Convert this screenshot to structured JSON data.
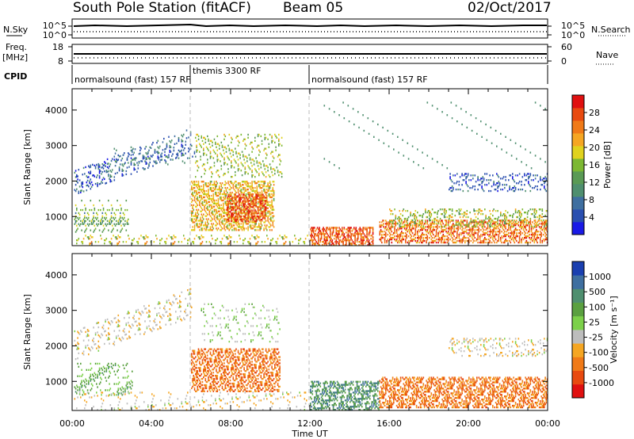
{
  "header": {
    "title": "South Pole Station (fitACF)",
    "beam": "Beam 05",
    "date": "02/Oct/2017"
  },
  "noise": {
    "left_label": "N.Sky",
    "right_label": "N.Search",
    "tick_high": "10^5",
    "tick_low": "10^0"
  },
  "freq": {
    "left_label": "Freq.",
    "left_unit": "[MHz]",
    "right_label": "Nave",
    "tick_high": "18",
    "tick_low": "8",
    "nave_high": "60",
    "nave_low": "0"
  },
  "cpid": {
    "label": "CPID",
    "segments": [
      "normalsound (fast) 157 RF",
      "themis 3300 RF",
      "normalsound (fast) 157 RF"
    ]
  },
  "xaxis": {
    "label": "Time UT",
    "range_hours": [
      0,
      24
    ],
    "tick_hours": [
      0,
      4,
      8,
      12,
      16,
      20,
      24
    ],
    "tick_labels": [
      "00:00",
      "04:00",
      "08:00",
      "12:00",
      "16:00",
      "20:00",
      "00:00"
    ]
  },
  "panels": {
    "power": {
      "ylabel": "Slant Range [km]",
      "colorbar_title": "Power [dB]",
      "yrange_km": [
        180,
        4600
      ],
      "yticks": [
        1000,
        2000,
        3000,
        4000
      ],
      "colorbar_ticks": [
        "4",
        "8",
        "12",
        "16",
        "20",
        "24",
        "28"
      ],
      "colorbar_range": [
        0,
        32
      ]
    },
    "velocity": {
      "ylabel": "Slant Range [km]",
      "colorbar_title": "Velocity [m s⁻¹]",
      "yrange_km": [
        180,
        4600
      ],
      "yticks": [
        1000,
        2000,
        3000,
        4000
      ],
      "colorbar_ticks": [
        "1000",
        "500",
        "100",
        "25",
        "-25",
        "-100",
        "-500",
        "-1000"
      ]
    }
  },
  "colors": {
    "power_scale": [
      "#1a1ae6",
      "#2a4fb0",
      "#3f6fa0",
      "#4f8f6f",
      "#5a9a55",
      "#7cb832",
      "#e0d21e",
      "#f5a623",
      "#f07a18",
      "#e84a10",
      "#e01010"
    ],
    "velocity_scale": [
      "#1a3fb0",
      "#3f6fa0",
      "#4f8f6f",
      "#5aa040",
      "#7cd04a",
      "#bdbdbd",
      "#f5a623",
      "#f07a18",
      "#e84a10",
      "#e01010"
    ]
  },
  "chart_data": {
    "type": "heatmap",
    "title": "South Pole Station (fitACF)",
    "xlabel": "Time UT",
    "ylabel": "Slant Range [km]",
    "x_range_hours": [
      0,
      24
    ],
    "y_range_km": [
      180,
      4600
    ],
    "vertical_markers_hours": [
      6,
      12
    ],
    "power_regions": [
      {
        "t0": 0.1,
        "t1": 6.0,
        "r0": 1600,
        "r1": 2300,
        "level": 6,
        "density": 0.22,
        "tilt": 1200
      },
      {
        "t0": 2.0,
        "t1": 6.2,
        "r0": 2450,
        "r1": 2950,
        "level": 7,
        "density": 0.15,
        "tilt": 0
      },
      {
        "t0": 0.1,
        "t1": 2.8,
        "r0": 550,
        "r1": 1450,
        "level": 14,
        "density": 0.25,
        "tilt": 0
      },
      {
        "t0": 6.0,
        "t1": 10.2,
        "r0": 600,
        "r1": 2000,
        "level": 20,
        "density": 0.45,
        "tilt": 0
      },
      {
        "t0": 7.8,
        "t1": 9.8,
        "r0": 850,
        "r1": 1600,
        "level": 27,
        "density": 0.5,
        "tilt": 0
      },
      {
        "t0": 6.2,
        "t1": 10.6,
        "r0": 2100,
        "r1": 3300,
        "level": 16,
        "density": 0.2,
        "tilt": 0
      },
      {
        "t0": 0.1,
        "t1": 11.9,
        "r0": 180,
        "r1": 450,
        "level": 18,
        "density": 0.18,
        "tilt": 0
      },
      {
        "t0": 12.0,
        "t1": 15.2,
        "r0": 180,
        "r1": 700,
        "level": 26,
        "density": 0.55,
        "tilt": 0
      },
      {
        "t0": 15.5,
        "t1": 24.0,
        "r0": 250,
        "r1": 900,
        "level": 24,
        "density": 0.45,
        "tilt": 0
      },
      {
        "t0": 16.0,
        "t1": 24.0,
        "r0": 700,
        "r1": 1200,
        "level": 16,
        "density": 0.3,
        "tilt": 0
      },
      {
        "t0": 19.0,
        "t1": 24.0,
        "r0": 1700,
        "r1": 2200,
        "level": 5,
        "density": 0.25,
        "tilt": 0
      },
      {
        "t0": 12.5,
        "t1": 24.0,
        "r0": 2300,
        "r1": 4200,
        "level": 10,
        "density": 0.02,
        "tilt": 0
      }
    ],
    "velocity_regions": [
      {
        "t0": 0.1,
        "t1": 6.0,
        "r0": 1600,
        "r1": 2400,
        "level": 5,
        "density": 0.18,
        "tilt": 1200
      },
      {
        "t0": 0.1,
        "t1": 3.0,
        "r0": 600,
        "r1": 1500,
        "level": 3,
        "density": 0.22,
        "tilt": 0
      },
      {
        "t0": 6.0,
        "t1": 10.5,
        "r0": 700,
        "r1": 1900,
        "level": 7,
        "density": 0.45,
        "tilt": 0
      },
      {
        "t0": 6.5,
        "t1": 10.5,
        "r0": 2100,
        "r1": 3200,
        "level": 4,
        "density": 0.15,
        "tilt": 0
      },
      {
        "t0": 0.1,
        "t1": 11.9,
        "r0": 180,
        "r1": 700,
        "level": 5,
        "density": 0.15,
        "tilt": 0
      },
      {
        "t0": 12.0,
        "t1": 15.5,
        "r0": 180,
        "r1": 1000,
        "level": 2,
        "density": 0.45,
        "tilt": 0
      },
      {
        "t0": 15.5,
        "t1": 24.0,
        "r0": 250,
        "r1": 1100,
        "level": 7,
        "density": 0.5,
        "tilt": 0
      },
      {
        "t0": 19.0,
        "t1": 24.0,
        "r0": 1700,
        "r1": 2200,
        "level": 5,
        "density": 0.22,
        "tilt": 0
      }
    ]
  }
}
